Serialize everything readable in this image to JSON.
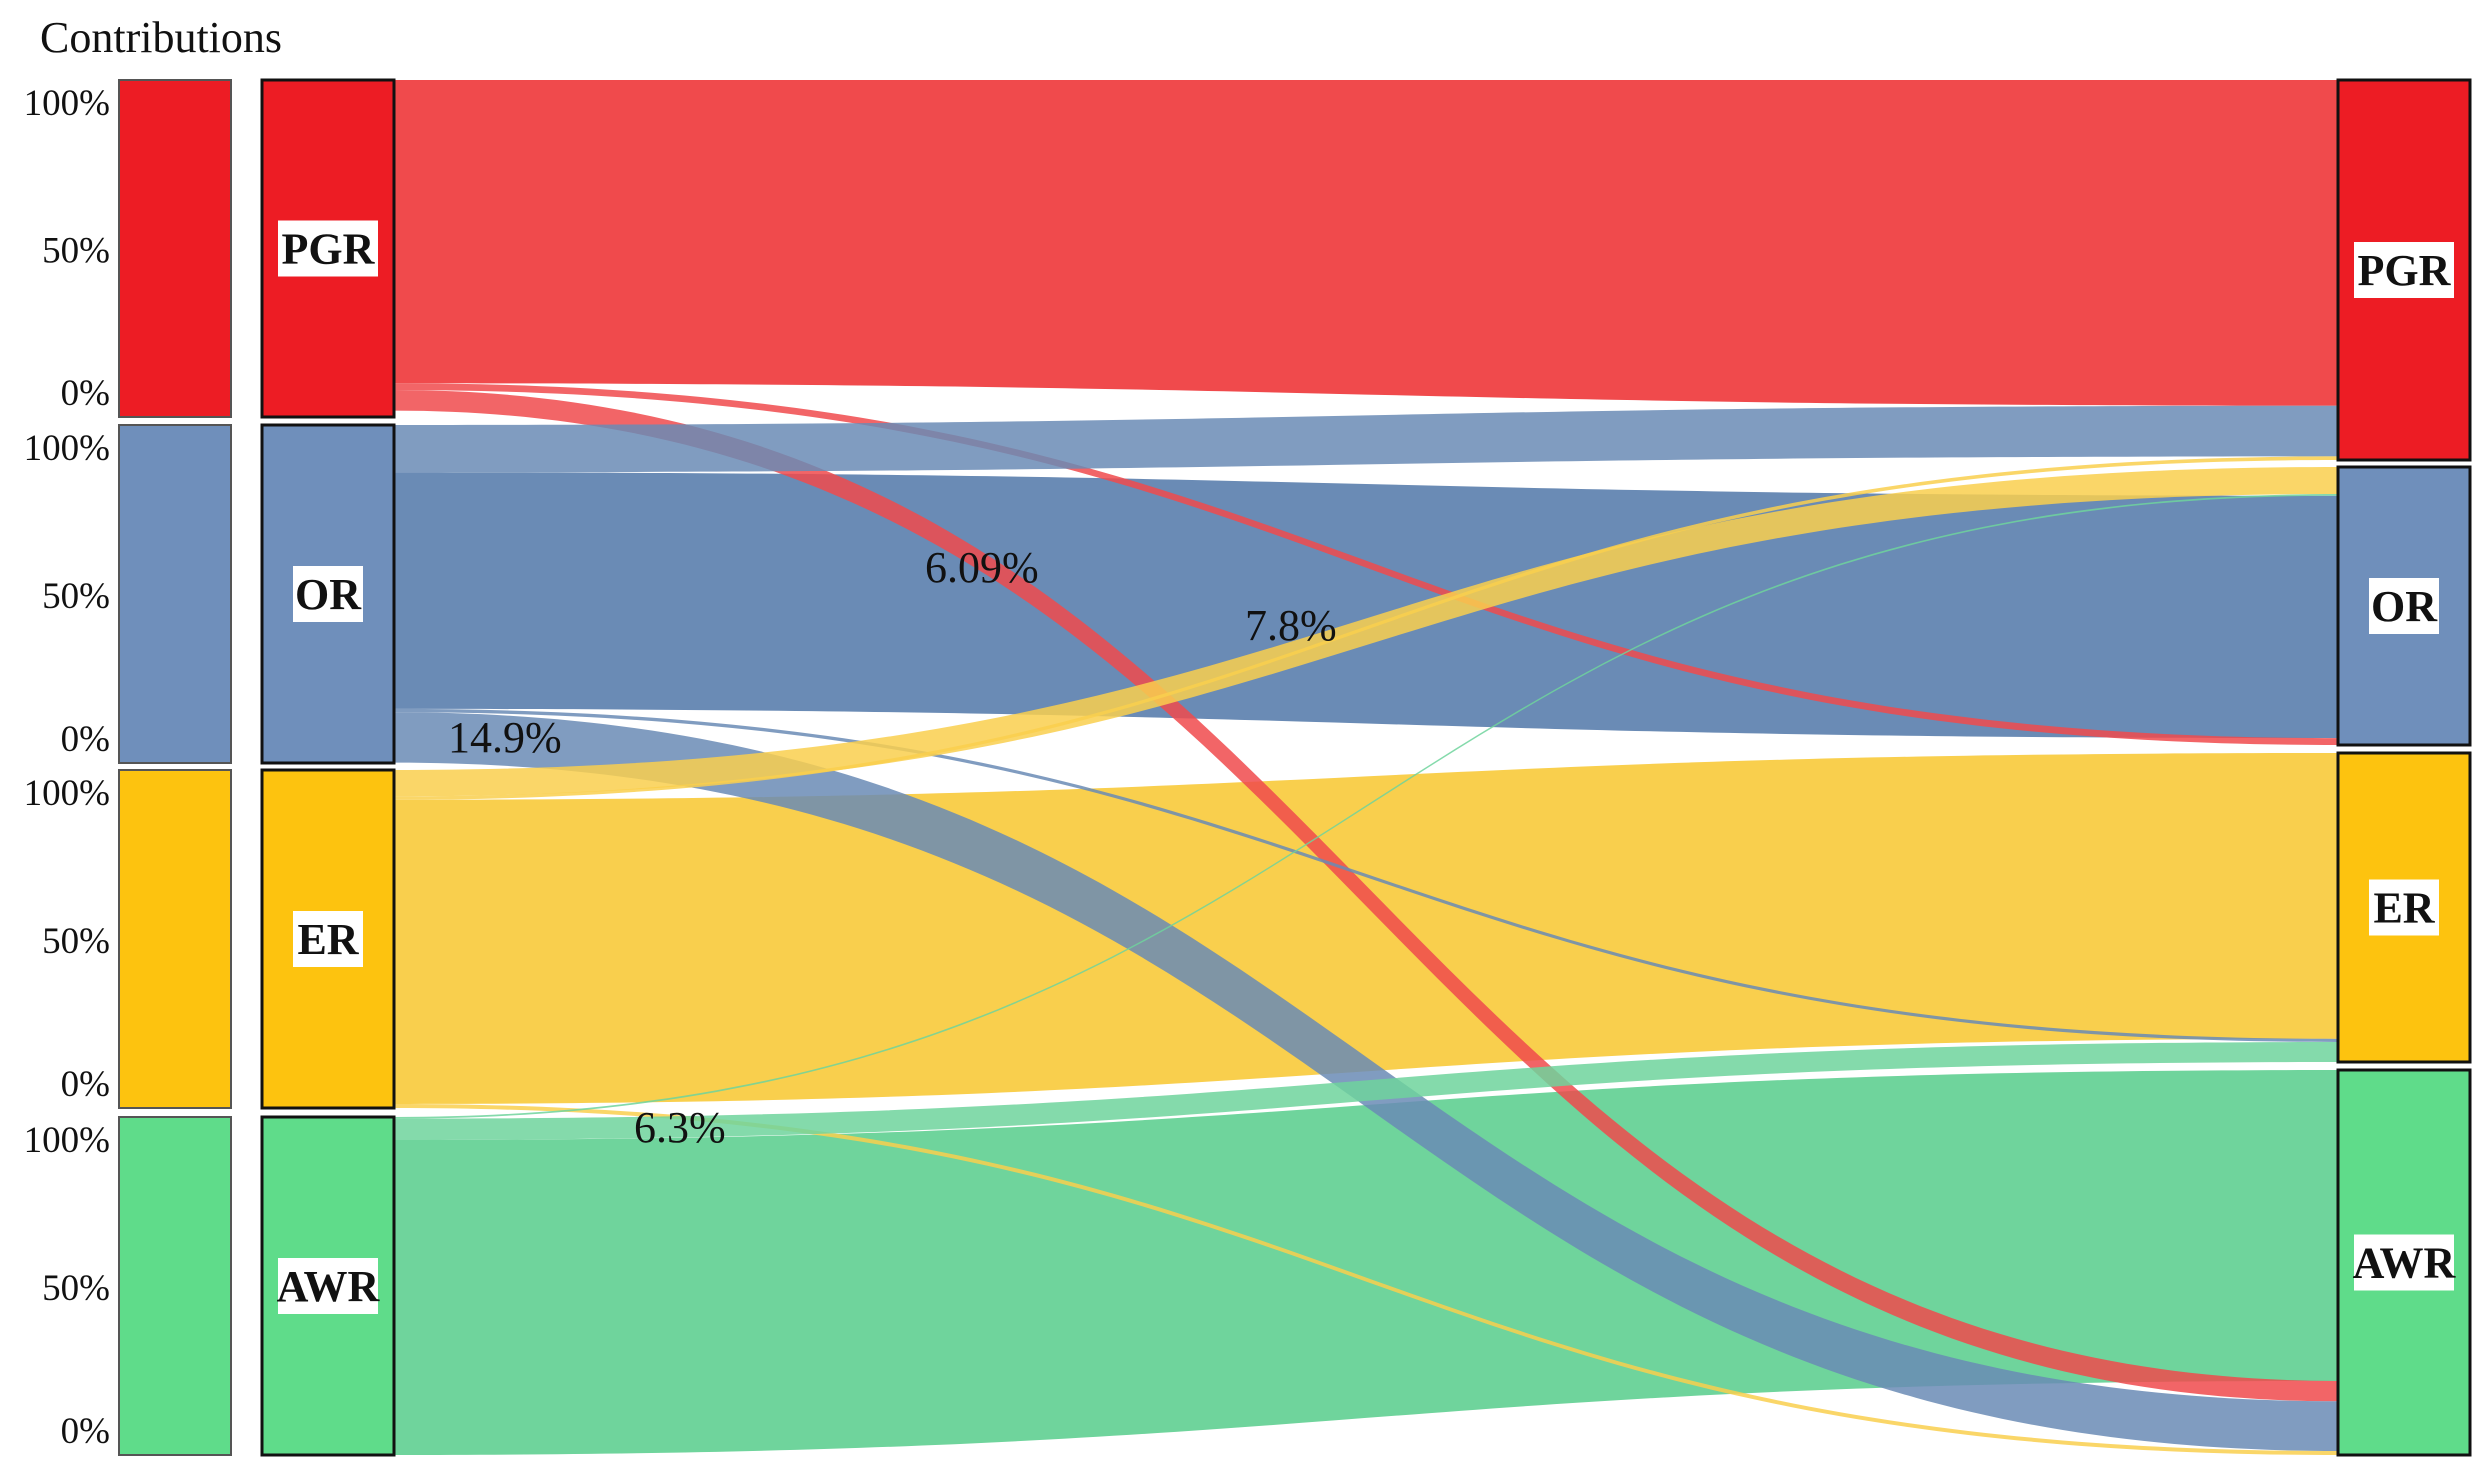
{
  "chart_data": {
    "type": "sankey",
    "title": "Contributions",
    "colors": {
      "PGR": "#ed1c24",
      "OR": "#6f8fbb",
      "ER": "#fdc30f",
      "AWR": "#5fdc8a"
    },
    "band_colors": {
      "PGR": "#f04a4c",
      "OR": "#6a8bb5",
      "ER": "#f9cf4d",
      "AWR": "#6fd49c"
    },
    "mix_color": "#b49a44",
    "source_nodes": [
      "PGR",
      "OR",
      "ER",
      "AWR"
    ],
    "target_nodes": [
      "PGR",
      "OR",
      "ER",
      "AWR"
    ],
    "axis_ticks": [
      "100%",
      "50%",
      "0%"
    ],
    "annotations": [
      "6.09%",
      "7.8%",
      "14.9%",
      "6.3%"
    ],
    "flows": [
      {
        "source": "PGR",
        "target": "PGR",
        "share": 0.9
      },
      {
        "source": "PGR",
        "target": "OR",
        "share": 0.02
      },
      {
        "source": "PGR",
        "target": "ER",
        "share": 0.01
      },
      {
        "source": "PGR",
        "target": "AWR",
        "share": 0.0609
      },
      {
        "source": "OR",
        "target": "PGR",
        "share": 0.14
      },
      {
        "source": "OR",
        "target": "OR",
        "share": 0.7
      },
      {
        "source": "OR",
        "target": "ER",
        "share": 0.01
      },
      {
        "source": "OR",
        "target": "AWR",
        "share": 0.149
      },
      {
        "source": "ER",
        "target": "PGR",
        "share": 0.01
      },
      {
        "source": "ER",
        "target": "OR",
        "share": 0.078
      },
      {
        "source": "ER",
        "target": "ER",
        "share": 0.9
      },
      {
        "source": "ER",
        "target": "AWR",
        "share": 0.012
      },
      {
        "source": "AWR",
        "target": "OR",
        "share": 0.005
      },
      {
        "source": "AWR",
        "target": "ER",
        "share": 0.063
      },
      {
        "source": "AWR",
        "target": "AWR",
        "share": 0.932
      }
    ]
  }
}
